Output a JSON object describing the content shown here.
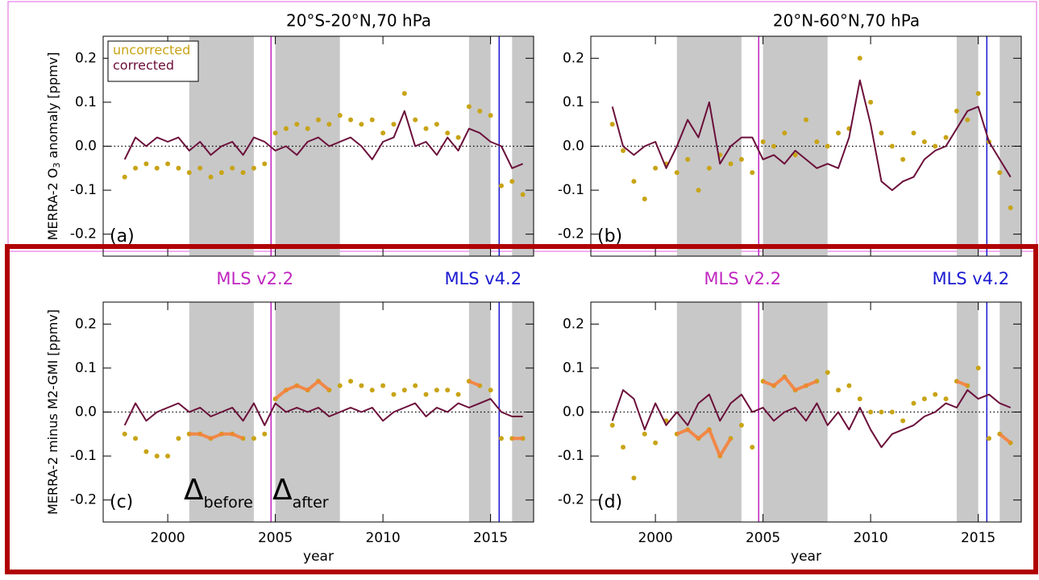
{
  "chart_data": [
    {
      "type": "line",
      "title": "20°S-20°N,70 hPa",
      "ylabel": [
        "MERRA-2 O",
        "3",
        " anomaly [ppmv]"
      ],
      "panel_label": "(a)",
      "legend": "top-left",
      "x": [
        1998,
        1998.5,
        1999,
        1999.5,
        2000,
        2000.5,
        2001,
        2001.5,
        2002,
        2002.5,
        2003,
        2003.5,
        2004,
        2004.5,
        2005,
        2005.5,
        2006,
        2006.5,
        2007,
        2007.5,
        2008,
        2008.5,
        2009,
        2009.5,
        2010,
        2010.5,
        2011,
        2011.5,
        2012,
        2012.5,
        2013,
        2013.5,
        2014,
        2014.5,
        2015,
        2015.5,
        2016,
        2016.5
      ],
      "series": [
        {
          "name": "uncorrected",
          "color": "#c8a416",
          "style": "markers",
          "values": [
            -0.07,
            -0.05,
            -0.04,
            -0.05,
            -0.04,
            -0.05,
            -0.06,
            -0.05,
            -0.07,
            -0.06,
            -0.05,
            -0.06,
            -0.05,
            -0.04,
            0.03,
            0.04,
            0.05,
            0.04,
            0.06,
            0.05,
            0.07,
            0.06,
            0.05,
            0.06,
            0.03,
            0.05,
            0.12,
            0.06,
            0.04,
            0.05,
            0.03,
            0.02,
            0.09,
            0.08,
            0.07,
            -0.09,
            -0.08,
            -0.11
          ]
        },
        {
          "name": "corrected",
          "color": "#6b0f3a",
          "style": "line",
          "values": [
            -0.03,
            0.02,
            0.0,
            0.02,
            0.01,
            0.02,
            -0.01,
            0.01,
            -0.02,
            0.0,
            0.01,
            -0.02,
            0.02,
            0.01,
            -0.01,
            0.0,
            -0.02,
            0.01,
            0.02,
            0.0,
            0.01,
            0.02,
            0.0,
            -0.03,
            0.01,
            0.02,
            0.08,
            0.0,
            0.01,
            -0.02,
            0.02,
            -0.01,
            0.04,
            0.03,
            0.01,
            0.0,
            -0.05,
            -0.04
          ]
        }
      ],
      "shaded": [
        [
          2001,
          2004
        ],
        [
          2005,
          2008
        ],
        [
          2014,
          2015
        ],
        [
          2016,
          2017
        ]
      ],
      "vlines": [
        {
          "x": 2004.8,
          "color": "#c026c0"
        },
        {
          "x": 2015.4,
          "color": "#1a1ad0"
        }
      ],
      "xlim": [
        1997,
        2017
      ],
      "xticks": [
        {
          "value": 2000,
          "label": null
        },
        {
          "value": 2005,
          "label": null
        },
        {
          "value": 2010,
          "label": null
        },
        {
          "value": 2015,
          "label": null
        }
      ],
      "ylim": [
        -0.25,
        0.25
      ],
      "yticks": [
        -0.2,
        -0.1,
        {
          "value": 0,
          "label": "0.0"
        },
        0.1,
        0.2
      ]
    },
    {
      "type": "line",
      "title": "20°N-60°N,70 hPa",
      "panel_label": "(b)",
      "x": [
        1998,
        1998.5,
        1999,
        1999.5,
        2000,
        2000.5,
        2001,
        2001.5,
        2002,
        2002.5,
        2003,
        2003.5,
        2004,
        2004.5,
        2005,
        2005.5,
        2006,
        2006.5,
        2007,
        2007.5,
        2008,
        2008.5,
        2009,
        2009.5,
        2010,
        2010.5,
        2011,
        2011.5,
        2012,
        2012.5,
        2013,
        2013.5,
        2014,
        2014.5,
        2015,
        2015.5,
        2016,
        2016.5
      ],
      "series": [
        {
          "color": "#c8a416",
          "style": "markers",
          "values": [
            0.05,
            -0.01,
            -0.08,
            -0.12,
            -0.05,
            -0.04,
            -0.06,
            -0.03,
            -0.1,
            -0.05,
            -0.02,
            -0.04,
            -0.03,
            -0.06,
            0.01,
            0.0,
            0.03,
            -0.02,
            0.06,
            0.01,
            0.0,
            0.03,
            0.04,
            0.2,
            0.1,
            0.03,
            0.0,
            -0.03,
            0.03,
            0.01,
            0.0,
            0.02,
            0.08,
            0.06,
            0.12,
            0.01,
            -0.06,
            -0.14
          ]
        },
        {
          "color": "#6b0f3a",
          "style": "line",
          "values": [
            0.09,
            0.0,
            -0.02,
            0.0,
            0.01,
            -0.05,
            0.0,
            0.06,
            0.02,
            0.1,
            -0.04,
            0.0,
            0.02,
            0.02,
            -0.03,
            -0.02,
            -0.04,
            -0.01,
            -0.03,
            -0.05,
            -0.04,
            -0.05,
            0.02,
            0.15,
            0.05,
            -0.08,
            -0.1,
            -0.08,
            -0.07,
            -0.03,
            -0.01,
            0.0,
            0.04,
            0.08,
            0.09,
            0.01,
            -0.03,
            -0.07
          ]
        }
      ],
      "shaded": [
        [
          2001,
          2004
        ],
        [
          2005,
          2008
        ],
        [
          2014,
          2015
        ],
        [
          2016,
          2017
        ]
      ],
      "vlines": [
        {
          "x": 2004.8,
          "color": "#c026c0"
        },
        {
          "x": 2015.4,
          "color": "#1a1ad0"
        }
      ],
      "xlim": [
        1997,
        2017
      ],
      "xticks": [
        {
          "value": 2000,
          "label": null
        },
        {
          "value": 2005,
          "label": null
        },
        {
          "value": 2010,
          "label": null
        },
        {
          "value": 2015,
          "label": null
        }
      ],
      "ylim": [
        -0.25,
        0.25
      ],
      "yticks": [
        -0.2,
        -0.1,
        {
          "value": 0,
          "label": "0.0"
        },
        0.1,
        0.2
      ]
    },
    {
      "type": "line",
      "ylabel": [
        "MERRA-2 minus M2-GMI [ppmv]"
      ],
      "panel_label": "(c)",
      "xlabel": "year",
      "annotations": [
        {
          "text": "Δ",
          "sub": "before"
        },
        {
          "text": "Δ",
          "sub": "after"
        }
      ],
      "x": [
        1998,
        1998.5,
        1999,
        1999.5,
        2000,
        2000.5,
        2001,
        2001.5,
        2002,
        2002.5,
        2003,
        2003.5,
        2004,
        2004.5,
        2005,
        2005.5,
        2006,
        2006.5,
        2007,
        2007.5,
        2008,
        2008.5,
        2009,
        2009.5,
        2010,
        2010.5,
        2011,
        2011.5,
        2012,
        2012.5,
        2013,
        2013.5,
        2014,
        2014.5,
        2015,
        2015.5,
        2016,
        2016.5
      ],
      "series": [
        {
          "color": "#c8a416",
          "style": "markers",
          "values": [
            -0.05,
            -0.06,
            -0.09,
            -0.1,
            -0.1,
            -0.06,
            -0.05,
            -0.05,
            -0.06,
            -0.05,
            -0.05,
            -0.06,
            -0.06,
            -0.05,
            0.03,
            0.05,
            0.06,
            0.05,
            0.07,
            0.05,
            0.06,
            0.07,
            0.06,
            0.05,
            0.06,
            0.04,
            0.05,
            0.06,
            0.04,
            0.05,
            0.05,
            0.04,
            0.07,
            0.06,
            0.05,
            -0.06,
            -0.06,
            -0.06
          ]
        },
        {
          "color": "#6b0f3a",
          "style": "line",
          "values": [
            -0.03,
            0.02,
            -0.02,
            0.0,
            0.01,
            0.02,
            0.0,
            0.01,
            -0.01,
            0.0,
            0.01,
            -0.02,
            0.02,
            -0.03,
            0.02,
            0.0,
            0.01,
            0.0,
            0.01,
            -0.01,
            0.0,
            0.01,
            0.0,
            0.01,
            -0.02,
            0.0,
            0.01,
            0.02,
            -0.01,
            0.01,
            0.0,
            0.02,
            0.01,
            0.02,
            0.03,
            0.0,
            -0.01,
            -0.01
          ]
        },
        {
          "color": "#f5813a",
          "style": "thick",
          "values": [
            null,
            null,
            null,
            null,
            null,
            null,
            -0.05,
            -0.05,
            -0.06,
            -0.05,
            -0.05,
            -0.06,
            null,
            null,
            0.03,
            0.05,
            0.06,
            0.05,
            0.07,
            0.05,
            null,
            null,
            null,
            null,
            null,
            null,
            null,
            null,
            null,
            null,
            null,
            null,
            0.07,
            0.06,
            null,
            null,
            -0.06,
            -0.06
          ]
        }
      ],
      "shaded": [
        [
          2001,
          2004
        ],
        [
          2005,
          2008
        ],
        [
          2014,
          2015
        ],
        [
          2016,
          2017
        ]
      ],
      "vlines": [
        {
          "x": 2004.8,
          "color": "#c026c0",
          "label": "MLS v2.2"
        },
        {
          "x": 2015.4,
          "color": "#1a1ad0",
          "label": "MLS v4.2"
        }
      ],
      "xlim": [
        1997,
        2017
      ],
      "xticks": [
        2000,
        2005,
        2010,
        2015
      ],
      "ylim": [
        -0.25,
        0.25
      ],
      "yticks": [
        -0.2,
        -0.1,
        {
          "value": 0,
          "label": "0.0"
        },
        0.1,
        0.2
      ]
    },
    {
      "type": "line",
      "panel_label": "(d)",
      "xlabel": "year",
      "x": [
        1998,
        1998.5,
        1999,
        1999.5,
        2000,
        2000.5,
        2001,
        2001.5,
        2002,
        2002.5,
        2003,
        2003.5,
        2004,
        2004.5,
        2005,
        2005.5,
        2006,
        2006.5,
        2007,
        2007.5,
        2008,
        2008.5,
        2009,
        2009.5,
        2010,
        2010.5,
        2011,
        2011.5,
        2012,
        2012.5,
        2013,
        2013.5,
        2014,
        2014.5,
        2015,
        2015.5,
        2016,
        2016.5
      ],
      "series": [
        {
          "color": "#c8a416",
          "style": "markers",
          "values": [
            -0.03,
            -0.08,
            -0.15,
            -0.05,
            -0.07,
            -0.02,
            -0.05,
            -0.04,
            -0.06,
            -0.04,
            -0.1,
            -0.06,
            -0.03,
            -0.08,
            0.07,
            0.06,
            0.08,
            0.05,
            0.06,
            0.07,
            0.09,
            0.05,
            0.06,
            0.03,
            0.0,
            0.0,
            0.0,
            -0.02,
            0.02,
            0.03,
            0.04,
            0.03,
            0.07,
            0.06,
            0.1,
            -0.06,
            -0.05,
            -0.07
          ]
        },
        {
          "color": "#6b0f3a",
          "style": "line",
          "values": [
            -0.02,
            0.05,
            0.03,
            -0.04,
            0.02,
            -0.03,
            0.0,
            -0.03,
            0.02,
            0.04,
            -0.02,
            0.02,
            0.04,
            0.0,
            0.01,
            -0.02,
            0.0,
            0.01,
            -0.02,
            0.02,
            -0.03,
            0.0,
            -0.04,
            0.01,
            -0.04,
            -0.08,
            -0.05,
            -0.04,
            -0.03,
            -0.01,
            0.0,
            0.02,
            0.01,
            0.05,
            0.03,
            0.04,
            0.02,
            0.01
          ]
        },
        {
          "color": "#f5813a",
          "style": "thick",
          "values": [
            null,
            null,
            null,
            null,
            null,
            null,
            -0.05,
            -0.04,
            -0.06,
            -0.04,
            -0.1,
            -0.06,
            null,
            null,
            0.07,
            0.06,
            0.08,
            0.05,
            0.06,
            0.07,
            null,
            null,
            null,
            null,
            null,
            null,
            null,
            null,
            null,
            null,
            null,
            null,
            0.07,
            0.06,
            null,
            null,
            -0.05,
            -0.07
          ]
        }
      ],
      "shaded": [
        [
          2001,
          2004
        ],
        [
          2005,
          2008
        ],
        [
          2014,
          2015
        ],
        [
          2016,
          2017
        ]
      ],
      "vlines": [
        {
          "x": 2004.8,
          "color": "#c026c0",
          "label": "MLS v2.2"
        },
        {
          "x": 2015.4,
          "color": "#1a1ad0",
          "label": "MLS v4.2"
        }
      ],
      "xlim": [
        1997,
        2017
      ],
      "xticks": [
        2000,
        2005,
        2010,
        2015
      ],
      "ylim": [
        -0.25,
        0.25
      ],
      "yticks": [
        -0.2,
        -0.1,
        {
          "value": 0,
          "label": "0.0"
        },
        0.1,
        0.2
      ]
    }
  ]
}
